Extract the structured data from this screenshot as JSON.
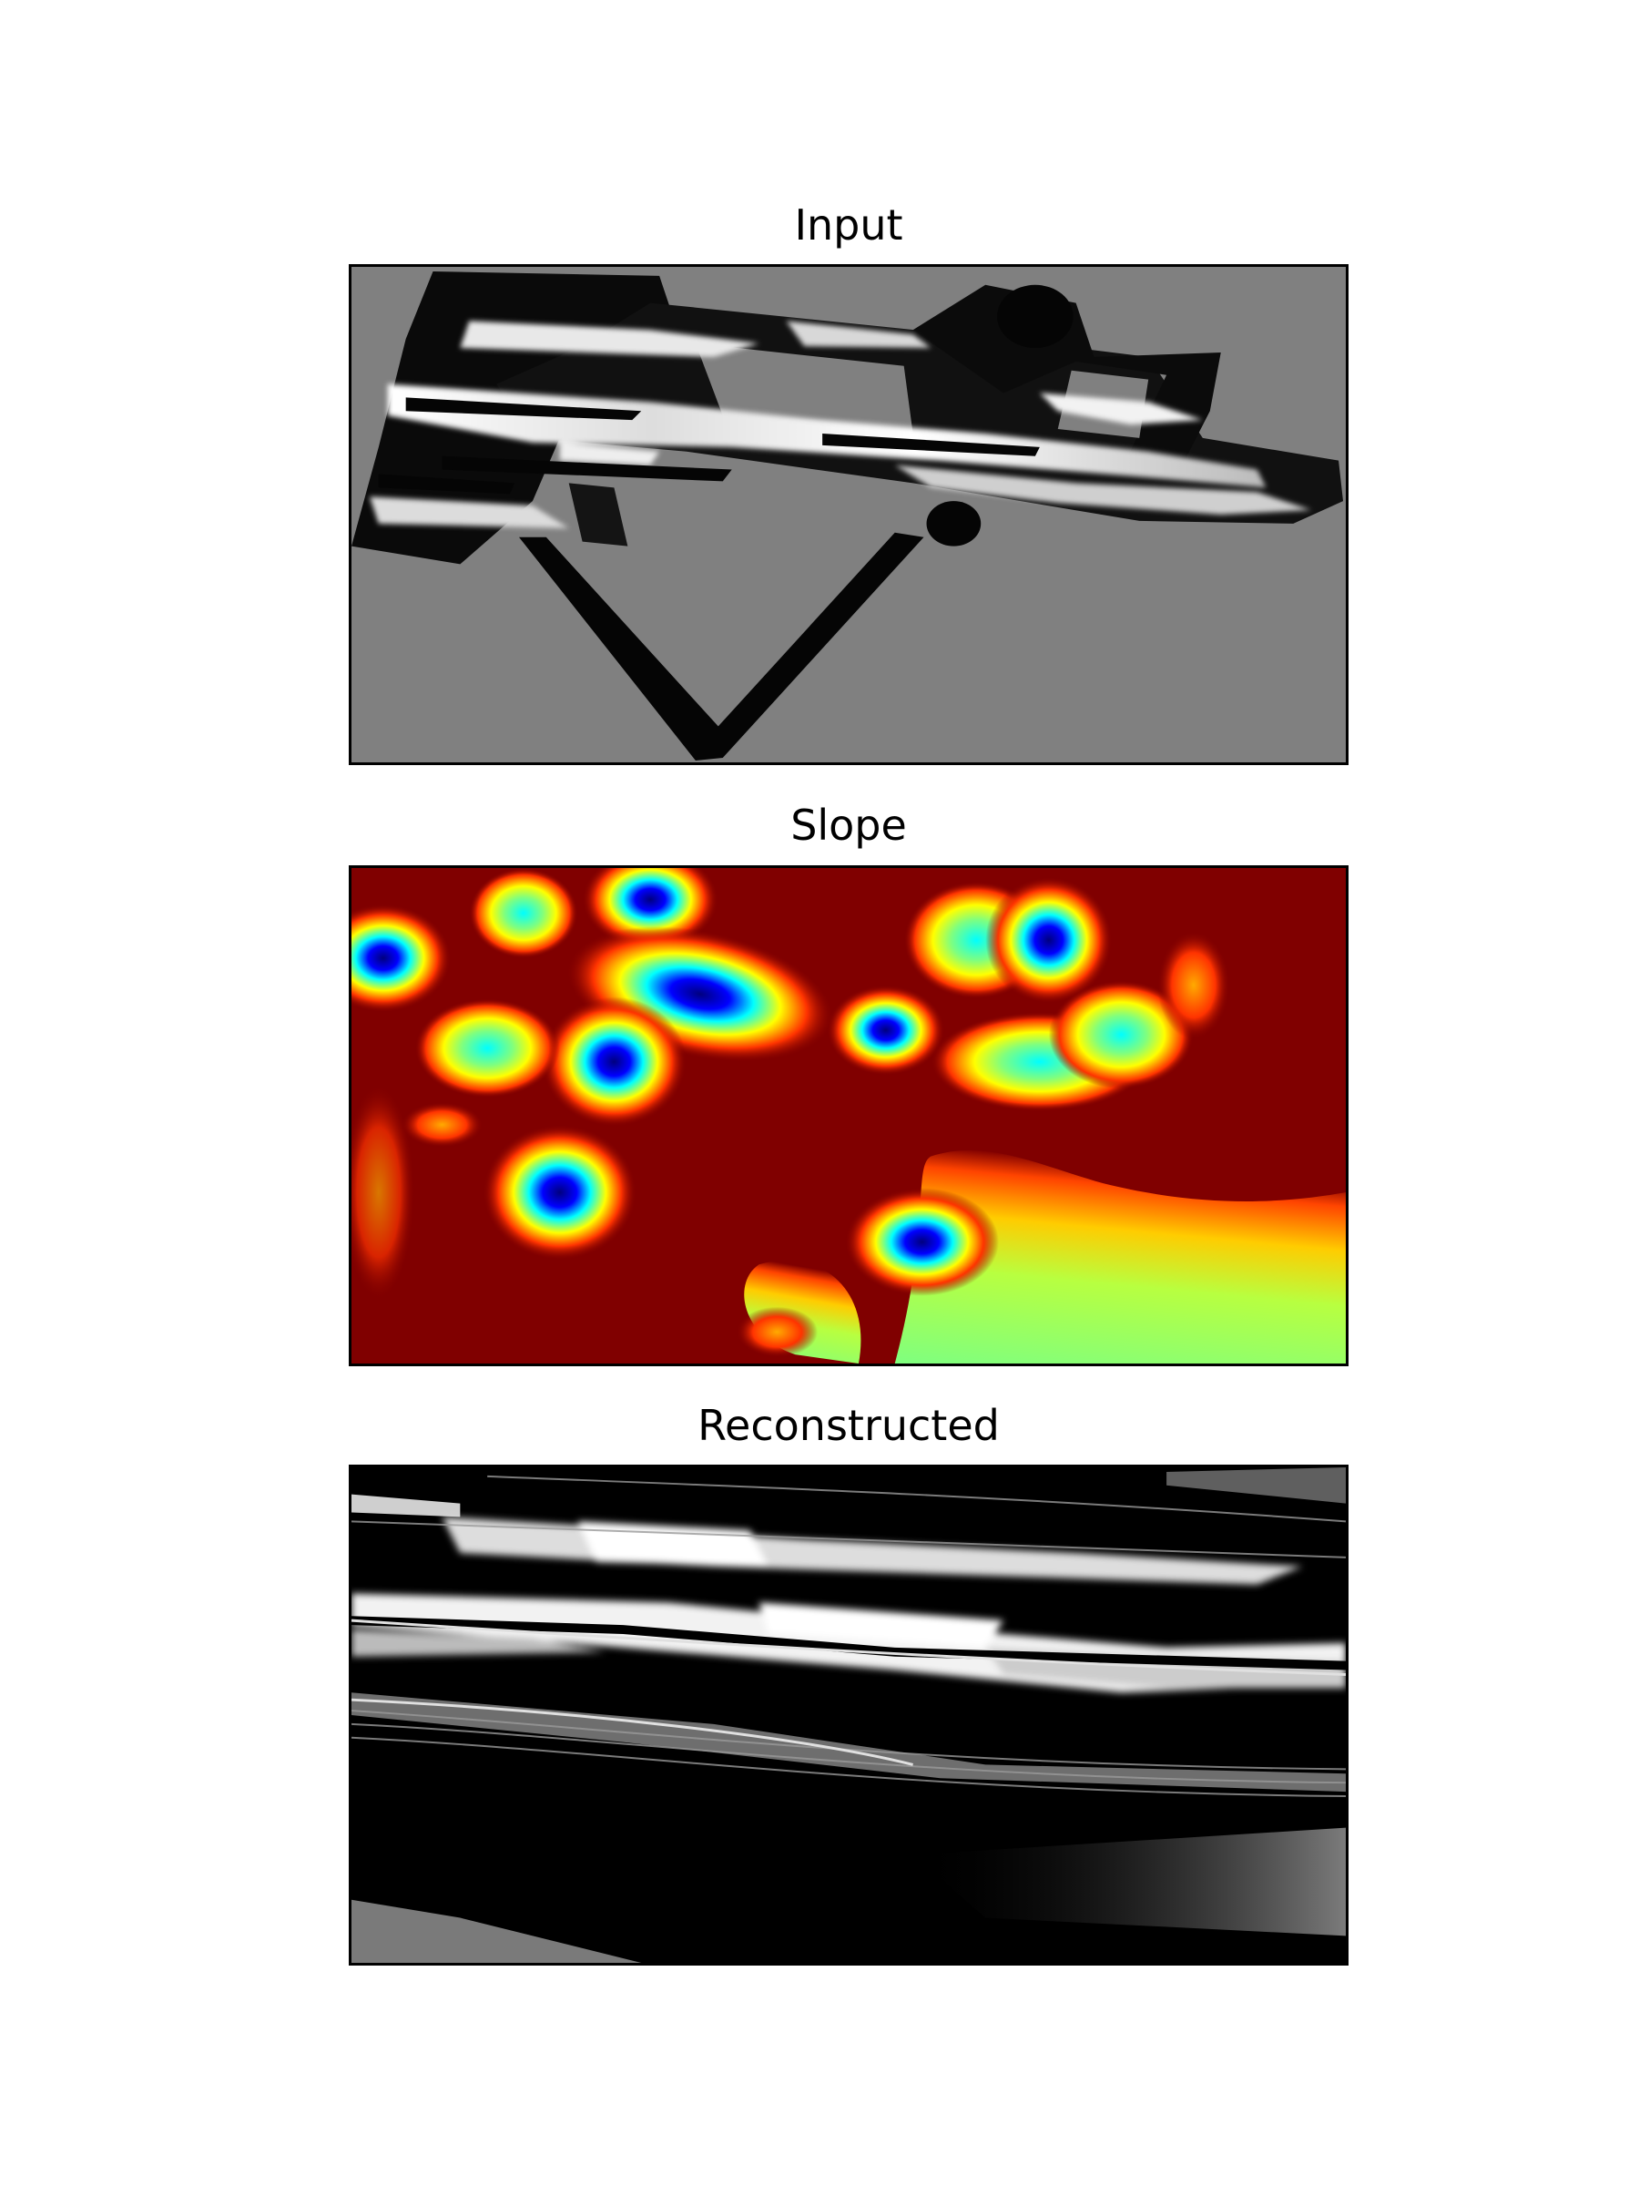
{
  "chart_data": [
    {
      "type": "heatmap",
      "title": "Input",
      "colormap": "gray",
      "axes_visible": false,
      "background_color": "#808080"
    },
    {
      "type": "heatmap",
      "title": "Slope",
      "colormap": "jet",
      "axes_visible": false,
      "background_color": "#800000"
    },
    {
      "type": "heatmap",
      "title": "Reconstructed",
      "colormap": "gray",
      "axes_visible": false,
      "background_color": "#000000"
    }
  ]
}
